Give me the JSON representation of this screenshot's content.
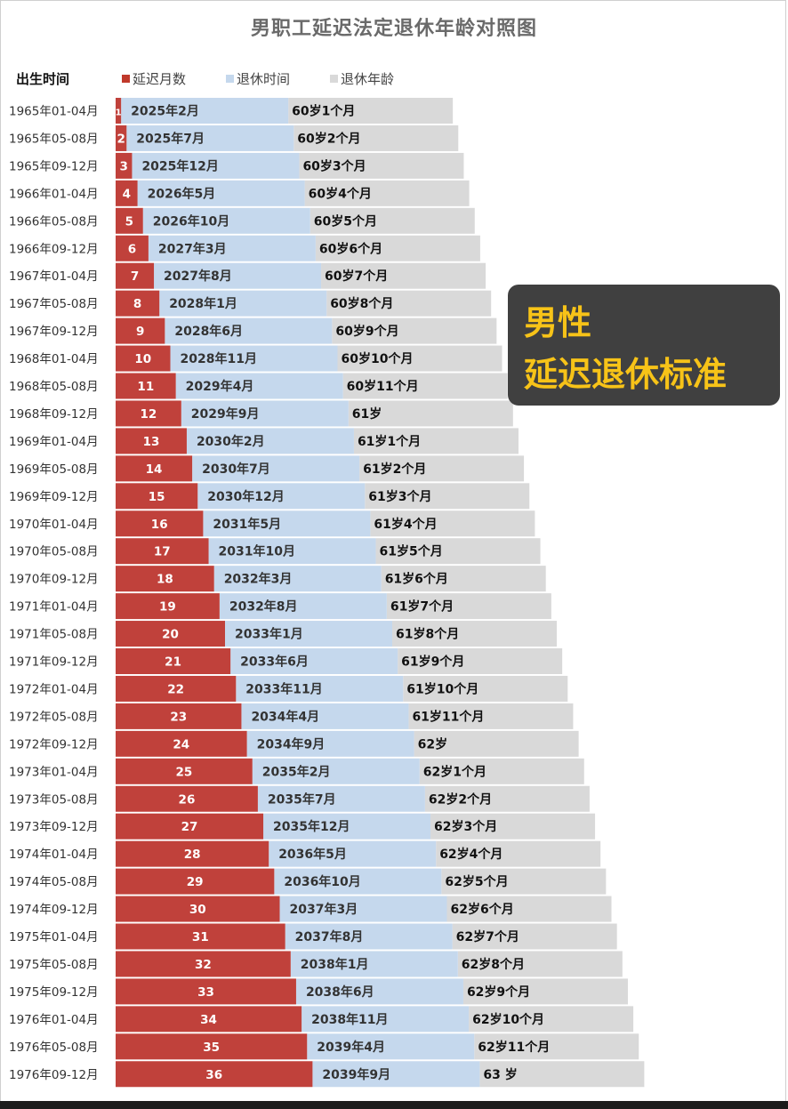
{
  "title": "男职工延迟法定退休年龄对照图",
  "legend": {
    "column_header": "出生时间",
    "items": [
      {
        "label": "延迟月数",
        "color": "#c0392b"
      },
      {
        "label": "退休时间",
        "color": "#c5d8ed"
      },
      {
        "label": "退休年龄",
        "color": "#d9d9d9"
      }
    ]
  },
  "callout": {
    "line1": "男性",
    "line2": "延迟退休标准"
  },
  "colors": {
    "delay": "#c0413b",
    "retire_time": "#c5d8ed",
    "retire_age": "#d9d9d9",
    "callout_bg": "#404040",
    "callout_text": "#f7c318"
  },
  "chart_data": {
    "type": "bar",
    "orientation": "horizontal",
    "stacked": true,
    "title": "男职工延迟法定退休年龄对照图",
    "categories": [
      "1965年01-04月",
      "1965年05-08月",
      "1965年09-12月",
      "1966年01-04月",
      "1966年05-08月",
      "1966年09-12月",
      "1967年01-04月",
      "1967年05-08月",
      "1967年09-12月",
      "1968年01-04月",
      "1968年05-08月",
      "1968年09-12月",
      "1969年01-04月",
      "1969年05-08月",
      "1969年09-12月",
      "1970年01-04月",
      "1970年05-08月",
      "1970年09-12月",
      "1971年01-04月",
      "1971年05-08月",
      "1971年09-12月",
      "1972年01-04月",
      "1972年05-08月",
      "1972年09-12月",
      "1973年01-04月",
      "1973年05-08月",
      "1973年09-12月",
      "1974年01-04月",
      "1974年05-08月",
      "1974年09-12月",
      "1975年01-04月",
      "1975年05-08月",
      "1975年09-12月",
      "1976年01-04月",
      "1976年05-08月",
      "1976年09-12月"
    ],
    "series": [
      {
        "name": "延迟月数",
        "values": [
          1,
          2,
          3,
          4,
          5,
          6,
          7,
          8,
          9,
          10,
          11,
          12,
          13,
          14,
          15,
          16,
          17,
          18,
          19,
          20,
          21,
          22,
          23,
          24,
          25,
          26,
          27,
          28,
          29,
          30,
          31,
          32,
          33,
          34,
          35,
          36
        ]
      },
      {
        "name": "退休时间",
        "labels": [
          "2025年2月",
          "2025年7月",
          "2025年12月",
          "2026年5月",
          "2026年10月",
          "2027年3月",
          "2027年8月",
          "2028年1月",
          "2028年6月",
          "2028年11月",
          "2029年4月",
          "2029年9月",
          "2030年2月",
          "2030年7月",
          "2030年12月",
          "2031年5月",
          "2031年10月",
          "2032年3月",
          "2032年8月",
          "2033年1月",
          "2033年6月",
          "2033年11月",
          "2034年4月",
          "2034年9月",
          "2035年2月",
          "2035年7月",
          "2035年12月",
          "2036年5月",
          "2036年10月",
          "2037年3月",
          "2037年8月",
          "2038年1月",
          "2038年6月",
          "2038年11月",
          "2039年4月",
          "2039年9月"
        ]
      },
      {
        "name": "退休年龄",
        "labels": [
          "60岁1个月",
          "60岁2个月",
          "60岁3个月",
          "60岁4个月",
          "60岁5个月",
          "60岁6个月",
          "60岁7个月",
          "60岁8个月",
          "60岁9个月",
          "60岁10个月",
          "60岁11个月",
          "61岁",
          "61岁1个月",
          "61岁2个月",
          "61岁3个月",
          "61岁4个月",
          "61岁5个月",
          "61岁6个月",
          "61岁7个月",
          "61岁8个月",
          "61岁9个月",
          "61岁10个月",
          "61岁11个月",
          "62岁",
          "62岁1个月",
          "62岁2个月",
          "62岁3个月",
          "62岁4个月",
          "62岁5个月",
          "62岁6个月",
          "62岁7个月",
          "62岁8个月",
          "62岁9个月",
          "62岁10个月",
          "62岁11个月",
          "63 岁"
        ]
      }
    ],
    "grid": false,
    "legend_position": "top-left"
  }
}
